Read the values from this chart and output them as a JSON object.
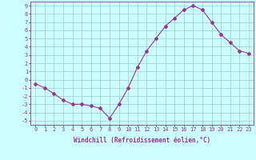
{
  "x": [
    0,
    1,
    2,
    3,
    4,
    5,
    6,
    7,
    8,
    9,
    10,
    11,
    12,
    13,
    14,
    15,
    16,
    17,
    18,
    19,
    20,
    21,
    22,
    23
  ],
  "y": [
    -0.5,
    -1.0,
    -1.7,
    -2.5,
    -3.0,
    -3.0,
    -3.2,
    -3.5,
    -4.7,
    -3.0,
    -1.0,
    1.5,
    3.5,
    5.0,
    6.5,
    7.5,
    8.5,
    9.0,
    8.5,
    7.0,
    5.5,
    4.5,
    3.5,
    3.2
  ],
  "line_color": "#993399",
  "marker": "D",
  "marker_size": 2,
  "bg_color": "#ccffff",
  "grid_color": "#99cccc",
  "xlabel": "Windchill (Refroidissement éolien,°C)",
  "xlabel_fontsize": 5.5,
  "tick_fontsize": 5,
  "ylim": [
    -5.5,
    9.5
  ],
  "xlim": [
    -0.5,
    23.5
  ],
  "yticks": [
    -5,
    -4,
    -3,
    -2,
    -1,
    0,
    1,
    2,
    3,
    4,
    5,
    6,
    7,
    8,
    9
  ],
  "xticks": [
    0,
    1,
    2,
    3,
    4,
    5,
    6,
    7,
    8,
    9,
    10,
    11,
    12,
    13,
    14,
    15,
    16,
    17,
    18,
    19,
    20,
    21,
    22,
    23
  ]
}
